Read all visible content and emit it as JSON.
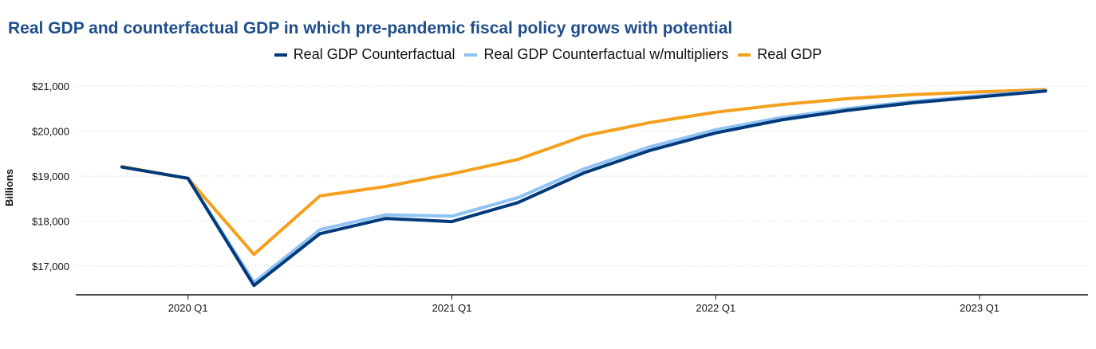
{
  "title": "Real GDP and counterfactual  GDP in which pre-pandemic  fiscal policy grows with potential",
  "colors": {
    "title": "#1f4e8c",
    "grid": "#e3e3e3",
    "axis": "#111111"
  },
  "chart_data": {
    "type": "line",
    "title": "Real GDP and counterfactual  GDP in which pre-pandemic  fiscal policy grows with potential",
    "ylabel": "Billions",
    "xlabel": "",
    "x": [
      "2019 Q4",
      "2020 Q1",
      "2020 Q2",
      "2020 Q3",
      "2020 Q4",
      "2021 Q1",
      "2021 Q2",
      "2021 Q3",
      "2021 Q4",
      "2022 Q1",
      "2022 Q2",
      "2022 Q3",
      "2022 Q4",
      "2023 Q1",
      "2023 Q2"
    ],
    "x_tick_labels": [
      "2020 Q1",
      "2021 Q1",
      "2022 Q1",
      "2023 Q1"
    ],
    "y_tick_labels": [
      "$17,000",
      "$18,000",
      "$19,000",
      "$20,000",
      "$21,000"
    ],
    "y_ticks": [
      17000,
      18000,
      19000,
      20000,
      21000
    ],
    "ylim": [
      16350,
      21300
    ],
    "grid": true,
    "legend_position": "top-center",
    "series": [
      {
        "name": "Real GDP Counterfactual",
        "color": "#003a7a",
        "values": [
          19200,
          18950,
          16570,
          17720,
          18060,
          17990,
          18410,
          19070,
          19570,
          19960,
          20250,
          20460,
          20630,
          20760,
          20890
        ]
      },
      {
        "name": "Real GDP Counterfactual w/multipliers",
        "color": "#8fc3f4",
        "values": [
          19200,
          18950,
          16640,
          17810,
          18140,
          18110,
          18520,
          19160,
          19650,
          20030,
          20300,
          20500,
          20660,
          20790,
          20900
        ]
      },
      {
        "name": "Real GDP",
        "color": "#f5a01d",
        "values": [
          19210,
          18950,
          17260,
          18560,
          18770,
          19050,
          19370,
          19890,
          20190,
          20420,
          20590,
          20720,
          20810,
          20870,
          20920
        ]
      }
    ]
  }
}
